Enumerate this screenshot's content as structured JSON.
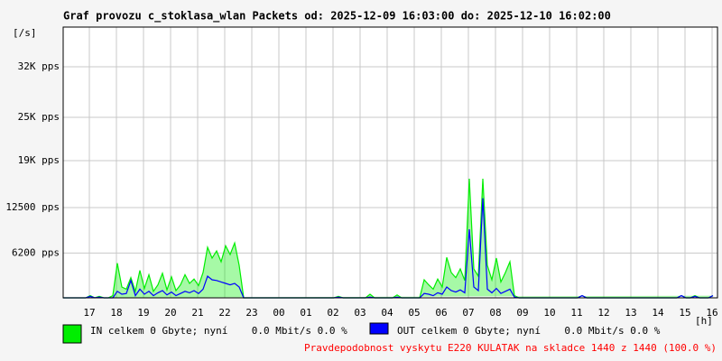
{
  "chart_data": {
    "type": "area",
    "title": "Graf provozu c_stoklasa_wlan Packets od: 2025-12-09 16:03:00 do: 2025-12-10 16:02:00",
    "y_label": "[/s]",
    "x_label": "[h]",
    "xtick_labels": [
      "17",
      "18",
      "19",
      "20",
      "21",
      "22",
      "23",
      "00",
      "01",
      "02",
      "03",
      "04",
      "05",
      "06",
      "07",
      "08",
      "09",
      "10",
      "11",
      "12",
      "13",
      "14",
      "15",
      "16"
    ],
    "ylim": [
      0,
      37500
    ],
    "yticks": [
      {
        "value": 6200,
        "label": "6200 pps"
      },
      {
        "value": 12500,
        "label": "12500 pps"
      },
      {
        "value": 19000,
        "label": "19K pps"
      },
      {
        "value": 25000,
        "label": "25K pps"
      },
      {
        "value": 32000,
        "label": "32K pps"
      }
    ],
    "grid": true,
    "series": [
      {
        "name": "IN celkem 0 Gbyte; nyní    0.0 Mbit/s 0.0 %",
        "color": "#00ee00",
        "values": [
          0,
          0,
          0,
          0,
          0,
          0,
          300,
          0,
          200,
          0,
          0,
          300,
          4800,
          1500,
          1200,
          2800,
          900,
          3800,
          1300,
          3200,
          900,
          1800,
          3400,
          1100,
          2900,
          1000,
          1800,
          3200,
          2000,
          2600,
          1700,
          3500,
          7000,
          5500,
          6500,
          5000,
          7200,
          6000,
          7600,
          4500,
          0,
          0,
          0,
          0,
          0,
          0,
          0,
          0,
          0,
          0,
          0,
          0,
          0,
          0,
          0,
          0,
          0,
          0,
          0,
          0,
          0,
          200,
          0,
          0,
          0,
          0,
          0,
          0,
          500,
          0,
          0,
          0,
          0,
          0,
          400,
          0,
          0,
          0,
          0,
          0,
          2500,
          1800,
          1200,
          2600,
          1500,
          5600,
          3500,
          2800,
          4000,
          2400,
          16500,
          4000,
          3000,
          16500,
          4500,
          2500,
          5500,
          2200,
          3500,
          5000,
          300,
          0,
          0,
          0,
          0,
          0,
          0,
          0,
          0,
          0,
          0,
          0,
          0,
          0,
          0,
          300,
          0,
          0,
          0,
          0,
          0,
          0,
          0,
          0,
          0,
          0,
          0,
          0,
          0,
          0,
          0,
          0,
          0,
          0,
          0,
          0,
          0,
          300,
          0,
          0,
          300,
          0,
          0,
          0,
          300
        ]
      },
      {
        "name": "OUT celkem 0 Gbyte; nyní    0.0 Mbit/s 0.0 %",
        "color": "#0000ff",
        "values": [
          0,
          0,
          0,
          0,
          0,
          0,
          200,
          0,
          100,
          0,
          0,
          0,
          900,
          500,
          600,
          2400,
          300,
          1200,
          500,
          900,
          300,
          700,
          1000,
          400,
          800,
          300,
          600,
          900,
          700,
          1000,
          600,
          1200,
          3000,
          2500,
          2400,
          2200,
          2000,
          1800,
          2000,
          1500,
          0,
          0,
          0,
          0,
          0,
          0,
          0,
          0,
          0,
          0,
          0,
          0,
          0,
          0,
          0,
          0,
          0,
          0,
          0,
          0,
          0,
          100,
          0,
          0,
          0,
          0,
          0,
          0,
          100,
          0,
          0,
          0,
          0,
          0,
          100,
          0,
          0,
          0,
          0,
          0,
          600,
          500,
          300,
          700,
          500,
          1500,
          1000,
          800,
          1100,
          700,
          9500,
          1500,
          1000,
          13800,
          1200,
          700,
          1300,
          600,
          900,
          1200,
          100,
          0,
          0,
          0,
          0,
          0,
          0,
          0,
          0,
          0,
          0,
          0,
          0,
          0,
          0,
          300,
          0,
          0,
          0,
          0,
          0,
          0,
          0,
          0,
          0,
          0,
          0,
          0,
          0,
          0,
          0,
          0,
          0,
          0,
          0,
          0,
          0,
          300,
          0,
          0,
          200,
          0,
          0,
          0,
          300
        ]
      }
    ],
    "note": "Pravdepodobnost vyskytu E220 KULATAK na skladce 1440 z 1440 (100.0 %)",
    "note_color": "#ff0000"
  }
}
